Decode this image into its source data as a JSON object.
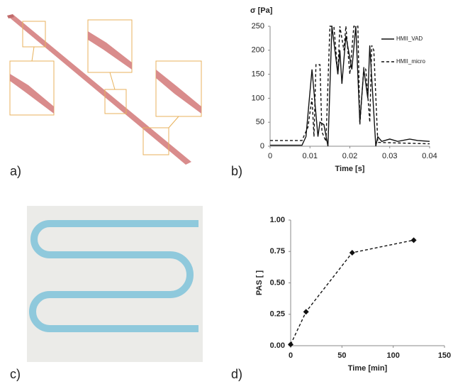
{
  "panel_labels": [
    "a)",
    "b)",
    "c)",
    "d)"
  ],
  "chart_data": [
    {
      "type": "line",
      "ylabel": "σ [Pa]",
      "xlabel": "Time [s]",
      "xlim": [
        0,
        0.04
      ],
      "xticks": [
        0,
        0.01,
        0.02,
        0.03,
        0.04
      ],
      "ylim": [
        0,
        250
      ],
      "yticks": [
        0,
        50,
        100,
        150,
        200,
        250
      ],
      "series": [
        {
          "name": "HMII_VAD",
          "color": "#111111",
          "style": "solid",
          "x": [
            0,
            0.008,
            0.009,
            0.0105,
            0.012,
            0.0125,
            0.0135,
            0.0145,
            0.0155,
            0.017,
            0.0175,
            0.018,
            0.019,
            0.0205,
            0.0215,
            0.0225,
            0.0235,
            0.0245,
            0.025,
            0.0265,
            0.027,
            0.028,
            0.03,
            0.032,
            0.035,
            0.037,
            0.04
          ],
          "values": [
            2,
            2,
            20,
            160,
            20,
            50,
            45,
            0,
            250,
            150,
            200,
            130,
            230,
            160,
            250,
            50,
            160,
            100,
            210,
            0,
            20,
            10,
            15,
            10,
            15,
            12,
            10
          ]
        },
        {
          "name": "HMII_micro",
          "color": "#111111",
          "style": "dashed",
          "x": [
            0,
            0.008,
            0.0095,
            0.0105,
            0.011,
            0.0115,
            0.0125,
            0.013,
            0.014,
            0.015,
            0.016,
            0.017,
            0.0175,
            0.0185,
            0.019,
            0.02,
            0.021,
            0.022,
            0.0225,
            0.0235,
            0.024,
            0.025,
            0.0255,
            0.026,
            0.027,
            0.04
          ],
          "values": [
            12,
            12,
            40,
            100,
            20,
            170,
            170,
            30,
            10,
            250,
            250,
            150,
            250,
            200,
            250,
            150,
            250,
            250,
            45,
            165,
            160,
            50,
            210,
            200,
            8,
            5
          ]
        }
      ]
    },
    {
      "type": "line",
      "ylabel": "PAS [ ]",
      "xlabel": "Time [min]",
      "xlim": [
        0,
        150
      ],
      "xticks": [
        0,
        50,
        100,
        150
      ],
      "ylim": [
        0,
        1
      ],
      "yticks": [
        {
          "value": 0,
          "label": "0.00"
        },
        {
          "value": 0.25,
          "label": "0.25"
        },
        {
          "value": 0.5,
          "label": "0.50"
        },
        {
          "value": 0.75,
          "label": "0.75"
        },
        {
          "value": 1,
          "label": "1.00"
        }
      ],
      "color": "#111111",
      "style": "dashed",
      "markers": true,
      "x": [
        0,
        15,
        60,
        120
      ],
      "values": [
        0.01,
        0.27,
        0.74,
        0.84
      ]
    }
  ]
}
